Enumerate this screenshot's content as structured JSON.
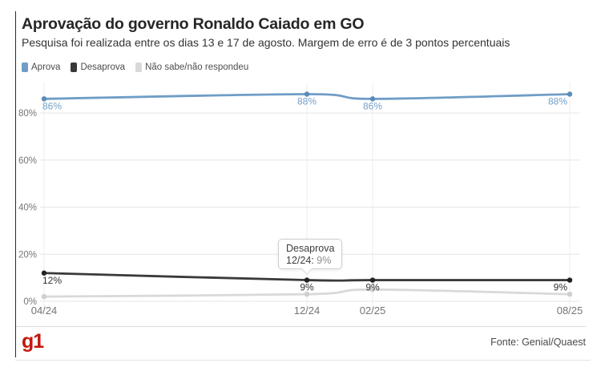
{
  "header": {
    "title": "Aprovação do governo Ronaldo Caiado em GO",
    "subtitle": "Pesquisa foi realizada entre os dias 13 e 17 de agosto. Margem de erro é de 3 pontos percentuais"
  },
  "legend": [
    {
      "label": "Aprova",
      "color": "#6f9dc6"
    },
    {
      "label": "Desaprova",
      "color": "#3a3a3a"
    },
    {
      "label": "Não sabe/não respondeu",
      "color": "#d9d9d9"
    }
  ],
  "chart_data": {
    "type": "line",
    "x_labels": [
      "04/24",
      "12/24",
      "02/25",
      "08/25"
    ],
    "x_months": [
      0,
      8,
      10,
      16
    ],
    "y_tick_labels": [
      "0%",
      "20%",
      "40%",
      "60%",
      "80%"
    ],
    "y_tick_values": [
      0,
      20,
      40,
      60,
      80
    ],
    "ylim": [
      0,
      93
    ],
    "grid": "on",
    "legend_position": "top-left",
    "series": [
      {
        "name": "Não sabe/não respondeu",
        "color": "#d9d9d9",
        "marker_color": "#cfcfcf",
        "values": [
          2,
          3,
          5,
          3
        ],
        "data_labels": null
      },
      {
        "name": "Aprova",
        "color": "#6f9dc6",
        "marker_color": "#5c8cb8",
        "label_color": "#74a0c8",
        "values": [
          86,
          88,
          86,
          88
        ],
        "data_labels": [
          "86%",
          "88%",
          "86%",
          "88%"
        ]
      },
      {
        "name": "Desaprova",
        "color": "#3a3a3a",
        "marker_color": "#222222",
        "label_color": "#333333",
        "values": [
          12,
          9,
          9,
          9
        ],
        "data_labels": [
          "12%",
          "9%",
          "9%",
          "9%"
        ]
      }
    ],
    "tooltip": {
      "series": "Desaprova",
      "title": "Desaprova",
      "label": "12/24:",
      "value": "9%",
      "point_x_label": "12/24"
    }
  },
  "footer": {
    "logo": "g1",
    "source": "Fonte: Genial/Quaest"
  },
  "colors": {
    "grid_horizontal": "#e5e5e5",
    "grid_vertical": "#ececec",
    "axis_label": "#757575",
    "brand_red": "#c4170c"
  }
}
